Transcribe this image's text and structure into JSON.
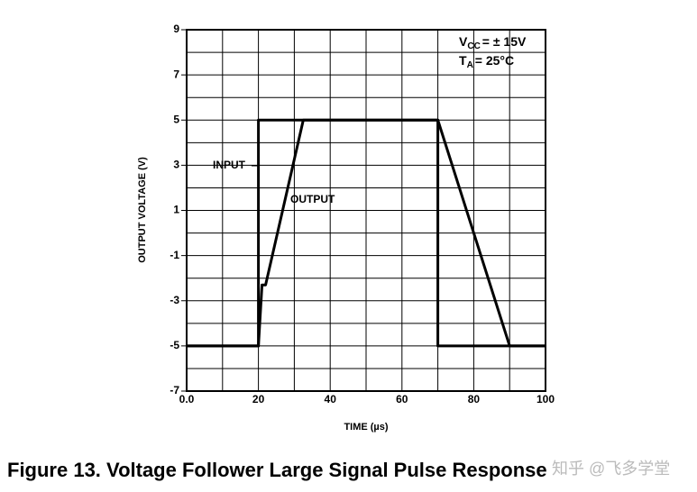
{
  "chart_data": {
    "type": "line",
    "xlabel": "TIME (µs)",
    "ylabel": "OUTPUT VOLTAGE (V)",
    "caption": "Figure 13. Voltage Follower Large Signal Pulse Response",
    "watermark": "知乎 @飞多学堂",
    "conditions": [
      {
        "symbol": "V",
        "subscript": "CC",
        "value": "= ± 15V"
      },
      {
        "symbol": "T",
        "subscript": "A",
        "value": "= 25°C"
      }
    ],
    "xlim": [
      0,
      100
    ],
    "ylim": [
      -7,
      9
    ],
    "xticks": [
      {
        "value": 0,
        "label": "0.0"
      },
      20,
      40,
      60,
      80,
      100
    ],
    "yticks": [
      9,
      7,
      5,
      3,
      1,
      -1,
      -3,
      -5,
      -7
    ],
    "grid": true,
    "series": [
      {
        "name": "INPUT",
        "color": "#000000",
        "x": [
          0,
          20,
          20,
          70,
          70,
          100
        ],
        "values": [
          -5,
          -5,
          5,
          5,
          -5,
          -5
        ]
      },
      {
        "name": "OUTPUT",
        "color": "#000000",
        "x": [
          0,
          20,
          21,
          22,
          32.5,
          70,
          90,
          100
        ],
        "values": [
          -5,
          -5,
          -2.3,
          -2.3,
          5,
          5,
          -5,
          -5
        ]
      }
    ]
  }
}
